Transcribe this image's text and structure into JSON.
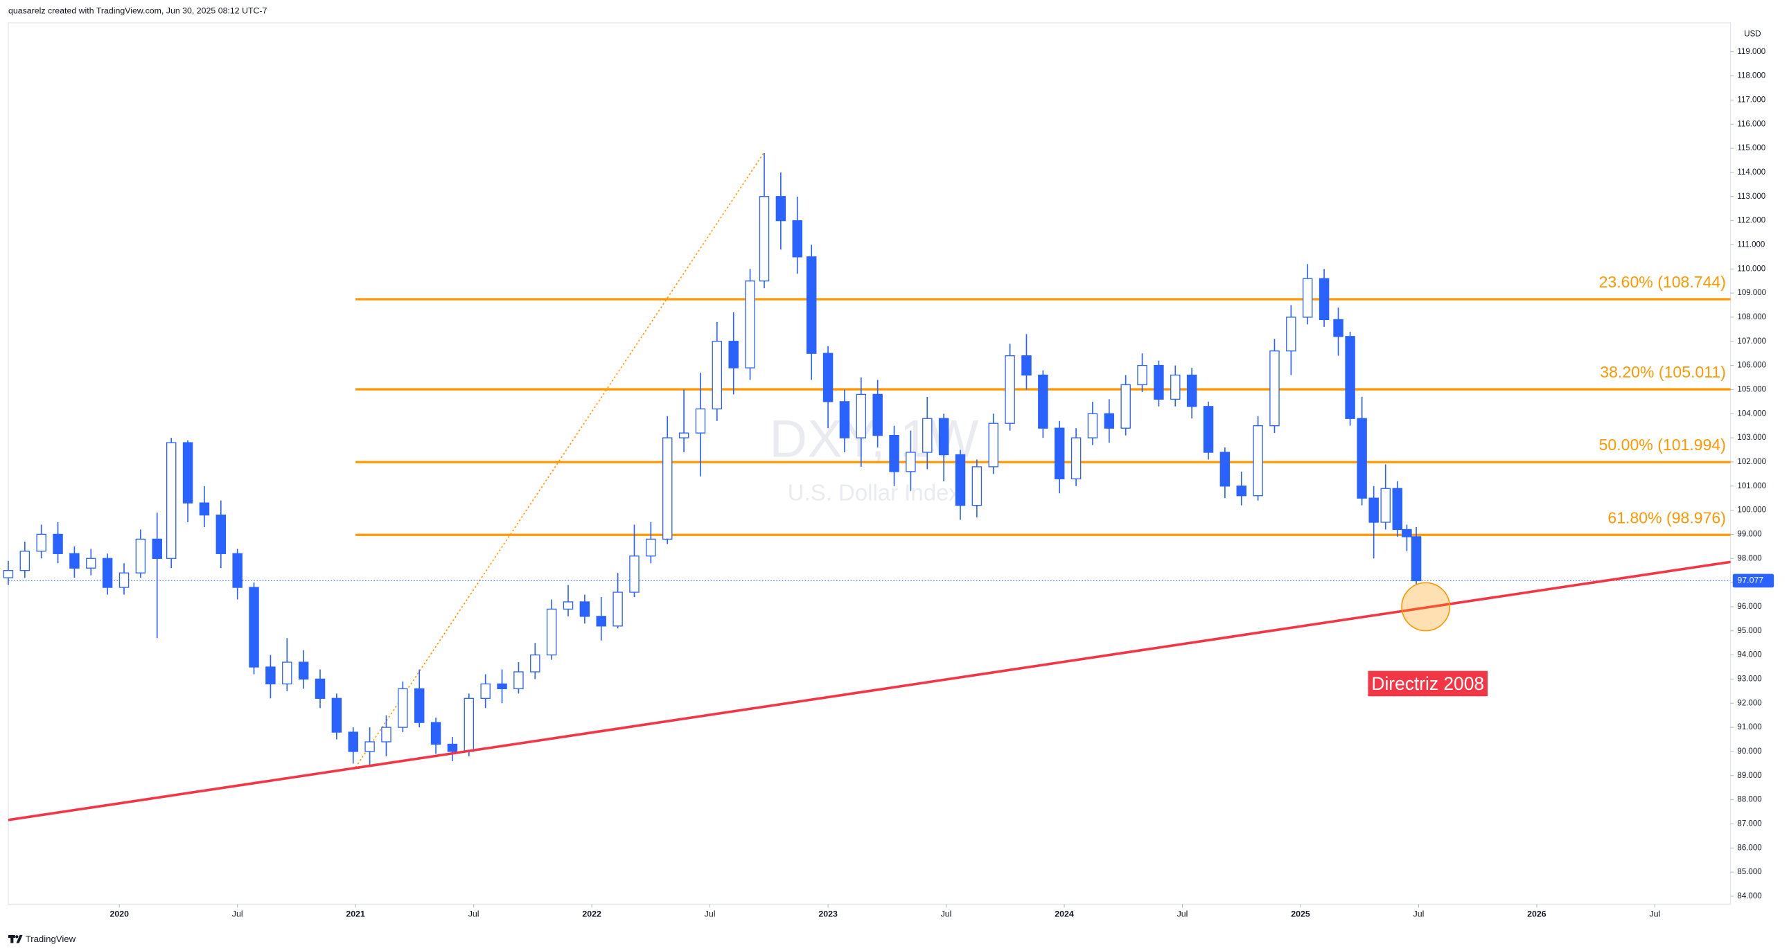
{
  "chart_data": {
    "type": "candlestick",
    "header": "quasarelz created with TradingView.com, Jun 30, 2025 08:12 UTC-7",
    "footer": "TradingView",
    "currency": "USD",
    "watermark": {
      "symbol": "DXY, 1W",
      "name": "U.S. Dollar Index"
    },
    "up_color": "#ffffff",
    "down_color": "#2962ff",
    "border_color": "#2962ff",
    "xlim": [
      2019.53,
      2026.82
    ],
    "ylim": [
      83.67,
      120.2
    ],
    "xticks": [
      2020,
      {
        "value": 2020.5,
        "label": "Jul"
      },
      2021,
      {
        "value": 2021.5,
        "label": "Jul"
      },
      2022,
      {
        "value": 2022.5,
        "label": "Jul"
      },
      2023,
      {
        "value": 2023.5,
        "label": "Jul"
      },
      2024,
      {
        "value": 2024.5,
        "label": "Jul"
      },
      2025,
      {
        "value": 2025.5,
        "label": "Jul"
      },
      2026,
      {
        "value": 2026.5,
        "label": "Jul"
      }
    ],
    "yticks": [
      {
        "value": 84,
        "label": "84.000"
      },
      {
        "value": 85,
        "label": "85.000"
      },
      {
        "value": 86,
        "label": "86.000"
      },
      {
        "value": 87,
        "label": "87.000"
      },
      {
        "value": 88,
        "label": "88.000"
      },
      {
        "value": 89,
        "label": "89.000"
      },
      {
        "value": 90,
        "label": "90.000"
      },
      {
        "value": 91,
        "label": "91.000"
      },
      {
        "value": 92,
        "label": "92.000"
      },
      {
        "value": 93,
        "label": "93.000"
      },
      {
        "value": 94,
        "label": "94.000"
      },
      {
        "value": 95,
        "label": "95.000"
      },
      {
        "value": 96,
        "label": "96.000"
      },
      {
        "value": 97,
        "label": "97.000"
      },
      {
        "value": 98,
        "label": "98.000"
      },
      {
        "value": 99,
        "label": "99.000"
      },
      {
        "value": 100,
        "label": "100.000"
      },
      {
        "value": 101,
        "label": "101.000"
      },
      {
        "value": 102,
        "label": "102.000"
      },
      {
        "value": 103,
        "label": "103.000"
      },
      {
        "value": 104,
        "label": "104.000"
      },
      {
        "value": 105,
        "label": "105.000"
      },
      {
        "value": 106,
        "label": "106.000"
      },
      {
        "value": 107,
        "label": "107.000"
      },
      {
        "value": 108,
        "label": "108.000"
      },
      {
        "value": 109,
        "label": "109.000"
      },
      {
        "value": 110,
        "label": "110.000"
      },
      {
        "value": 111,
        "label": "111.000"
      },
      {
        "value": 112,
        "label": "112.000"
      },
      {
        "value": 113,
        "label": "113.000"
      },
      {
        "value": 114,
        "label": "114.000"
      },
      {
        "value": 115,
        "label": "115.000"
      },
      {
        "value": 116,
        "label": "116.000"
      },
      {
        "value": 117,
        "label": "117.000"
      },
      {
        "value": 118,
        "label": "118.000"
      },
      {
        "value": 119,
        "label": "119.000"
      }
    ],
    "x": [
      2019.53,
      2019.6,
      2019.67,
      2019.74,
      2019.81,
      2019.88,
      2019.95,
      2020.02,
      2020.09,
      2020.16,
      2020.22,
      2020.29,
      2020.36,
      2020.43,
      2020.5,
      2020.57,
      2020.64,
      2020.71,
      2020.78,
      2020.85,
      2020.92,
      2020.99,
      2021.06,
      2021.13,
      2021.2,
      2021.27,
      2021.34,
      2021.41,
      2021.48,
      2021.55,
      2021.62,
      2021.69,
      2021.76,
      2021.83,
      2021.9,
      2021.97,
      2022.04,
      2022.11,
      2022.18,
      2022.25,
      2022.32,
      2022.39,
      2022.46,
      2022.53,
      2022.6,
      2022.67,
      2022.73,
      2022.8,
      2022.87,
      2022.93,
      2023.0,
      2023.07,
      2023.14,
      2023.21,
      2023.28,
      2023.35,
      2023.42,
      2023.49,
      2023.56,
      2023.63,
      2023.7,
      2023.77,
      2023.84,
      2023.91,
      2023.98,
      2024.05,
      2024.12,
      2024.19,
      2024.26,
      2024.33,
      2024.4,
      2024.47,
      2024.54,
      2024.61,
      2024.68,
      2024.75,
      2024.82,
      2024.89,
      2024.96,
      2025.03,
      2025.1,
      2025.16,
      2025.21,
      2025.26,
      2025.31,
      2025.36,
      2025.41,
      2025.45,
      2025.49
    ],
    "ohlc": [
      [
        97.2,
        97.9,
        96.9,
        97.5
      ],
      [
        97.5,
        98.7,
        97.2,
        98.3
      ],
      [
        98.3,
        99.4,
        98.0,
        99.0
      ],
      [
        99.0,
        99.5,
        97.8,
        98.2
      ],
      [
        98.2,
        98.5,
        97.2,
        97.6
      ],
      [
        97.6,
        98.4,
        97.3,
        98.0
      ],
      [
        98.0,
        98.2,
        96.5,
        96.8
      ],
      [
        96.8,
        97.8,
        96.5,
        97.4
      ],
      [
        97.4,
        99.2,
        97.2,
        98.8
      ],
      [
        98.8,
        99.9,
        94.7,
        98.0
      ],
      [
        98.0,
        103.0,
        97.6,
        102.8
      ],
      [
        102.8,
        102.9,
        99.5,
        100.3
      ],
      [
        100.3,
        101.0,
        99.3,
        99.8
      ],
      [
        99.8,
        100.4,
        97.6,
        98.2
      ],
      [
        98.2,
        98.4,
        96.3,
        96.8
      ],
      [
        96.8,
        97.0,
        93.2,
        93.5
      ],
      [
        93.5,
        94.0,
        92.2,
        92.8
      ],
      [
        92.8,
        94.7,
        92.5,
        93.7
      ],
      [
        93.7,
        94.2,
        92.6,
        93.0
      ],
      [
        93.0,
        93.4,
        91.8,
        92.2
      ],
      [
        92.2,
        92.4,
        90.5,
        90.8
      ],
      [
        90.8,
        91.0,
        89.5,
        90.0
      ],
      [
        90.0,
        91.0,
        89.4,
        90.4
      ],
      [
        90.4,
        91.5,
        89.8,
        91.0
      ],
      [
        91.0,
        92.9,
        90.8,
        92.6
      ],
      [
        92.6,
        93.4,
        91.0,
        91.2
      ],
      [
        91.2,
        91.4,
        89.9,
        90.3
      ],
      [
        90.3,
        90.6,
        89.6,
        90.0
      ],
      [
        90.0,
        92.4,
        89.8,
        92.2
      ],
      [
        92.2,
        93.2,
        91.8,
        92.8
      ],
      [
        92.8,
        93.4,
        92.0,
        92.6
      ],
      [
        92.6,
        93.7,
        92.4,
        93.3
      ],
      [
        93.3,
        94.5,
        93.0,
        94.0
      ],
      [
        94.0,
        96.3,
        93.8,
        95.9
      ],
      [
        95.9,
        96.9,
        95.6,
        96.2
      ],
      [
        96.2,
        96.5,
        95.3,
        95.6
      ],
      [
        95.6,
        96.4,
        94.6,
        95.2
      ],
      [
        95.2,
        97.4,
        95.1,
        96.6
      ],
      [
        96.6,
        99.4,
        96.4,
        98.1
      ],
      [
        98.1,
        99.5,
        97.8,
        98.8
      ],
      [
        98.8,
        103.9,
        98.6,
        103.0
      ],
      [
        103.0,
        105.0,
        102.4,
        103.2
      ],
      [
        103.2,
        105.7,
        101.4,
        104.2
      ],
      [
        104.2,
        107.8,
        103.7,
        107.0
      ],
      [
        107.0,
        108.2,
        104.8,
        105.9
      ],
      [
        105.9,
        110.0,
        105.4,
        109.5
      ],
      [
        109.5,
        114.8,
        109.2,
        113.0
      ],
      [
        113.0,
        114.0,
        110.8,
        112.0
      ],
      [
        112.0,
        113.0,
        109.8,
        110.5
      ],
      [
        110.5,
        111.0,
        105.4,
        106.5
      ],
      [
        106.5,
        106.8,
        103.4,
        104.5
      ],
      [
        104.5,
        105.0,
        102.4,
        103.0
      ],
      [
        103.0,
        105.5,
        101.8,
        104.8
      ],
      [
        104.8,
        105.4,
        102.6,
        103.1
      ],
      [
        103.1,
        103.5,
        101.0,
        101.6
      ],
      [
        101.6,
        103.3,
        100.8,
        102.4
      ],
      [
        102.4,
        104.7,
        101.7,
        103.8
      ],
      [
        103.8,
        104.0,
        101.2,
        102.3
      ],
      [
        102.3,
        102.5,
        99.6,
        100.2
      ],
      [
        100.2,
        102.1,
        99.7,
        101.8
      ],
      [
        101.8,
        104.0,
        101.5,
        103.6
      ],
      [
        103.6,
        106.9,
        103.3,
        106.4
      ],
      [
        106.4,
        107.3,
        105.0,
        105.6
      ],
      [
        105.6,
        105.8,
        103.0,
        103.4
      ],
      [
        103.4,
        103.7,
        100.7,
        101.3
      ],
      [
        101.3,
        103.4,
        101.0,
        103.0
      ],
      [
        103.0,
        104.5,
        102.7,
        104.0
      ],
      [
        104.0,
        104.6,
        102.8,
        103.4
      ],
      [
        103.4,
        105.6,
        103.1,
        105.2
      ],
      [
        105.2,
        106.5,
        104.9,
        106.0
      ],
      [
        106.0,
        106.2,
        104.3,
        104.6
      ],
      [
        104.6,
        106.0,
        104.3,
        105.6
      ],
      [
        105.6,
        105.9,
        103.8,
        104.3
      ],
      [
        104.3,
        104.5,
        102.1,
        102.4
      ],
      [
        102.4,
        102.6,
        100.5,
        101.0
      ],
      [
        101.0,
        101.6,
        100.2,
        100.6
      ],
      [
        100.6,
        103.9,
        100.4,
        103.5
      ],
      [
        103.5,
        107.1,
        103.2,
        106.6
      ],
      [
        106.6,
        108.5,
        105.6,
        108.0
      ],
      [
        108.0,
        110.2,
        107.7,
        109.6
      ],
      [
        109.6,
        110.0,
        107.6,
        107.9
      ],
      [
        107.9,
        108.4,
        106.4,
        107.2
      ],
      [
        107.2,
        107.4,
        103.5,
        103.8
      ],
      [
        103.8,
        104.7,
        100.2,
        100.5
      ],
      [
        100.5,
        101.0,
        98.0,
        99.5
      ],
      [
        99.5,
        101.9,
        99.2,
        100.9
      ],
      [
        100.9,
        101.2,
        98.9,
        99.2
      ],
      [
        99.2,
        99.4,
        98.3,
        98.9
      ],
      [
        98.9,
        99.3,
        96.9,
        97.077
      ]
    ],
    "last_price": 97.077,
    "fib": {
      "start": 2021.0,
      "color": "#ff9800",
      "levels": [
        {
          "value": 108.744,
          "label": "23.60% (108.744)"
        },
        {
          "value": 105.011,
          "label": "38.20% (105.011)"
        },
        {
          "value": 101.994,
          "label": "50.00% (101.994)"
        },
        {
          "value": 98.976,
          "label": "61.80% (98.976)"
        }
      ]
    },
    "trend": {
      "x": [
        2021.0,
        2022.73
      ],
      "y": [
        89.34,
        114.84
      ],
      "color": "#ff9800"
    },
    "directriz": {
      "label": "Directriz 2008",
      "x": [
        2019.53,
        2026.85
      ],
      "y": [
        87.16,
        97.9
      ],
      "color": "#f23645"
    },
    "circle": {
      "x": 2025.53,
      "y": 96.0,
      "color": "#ff9800"
    }
  }
}
